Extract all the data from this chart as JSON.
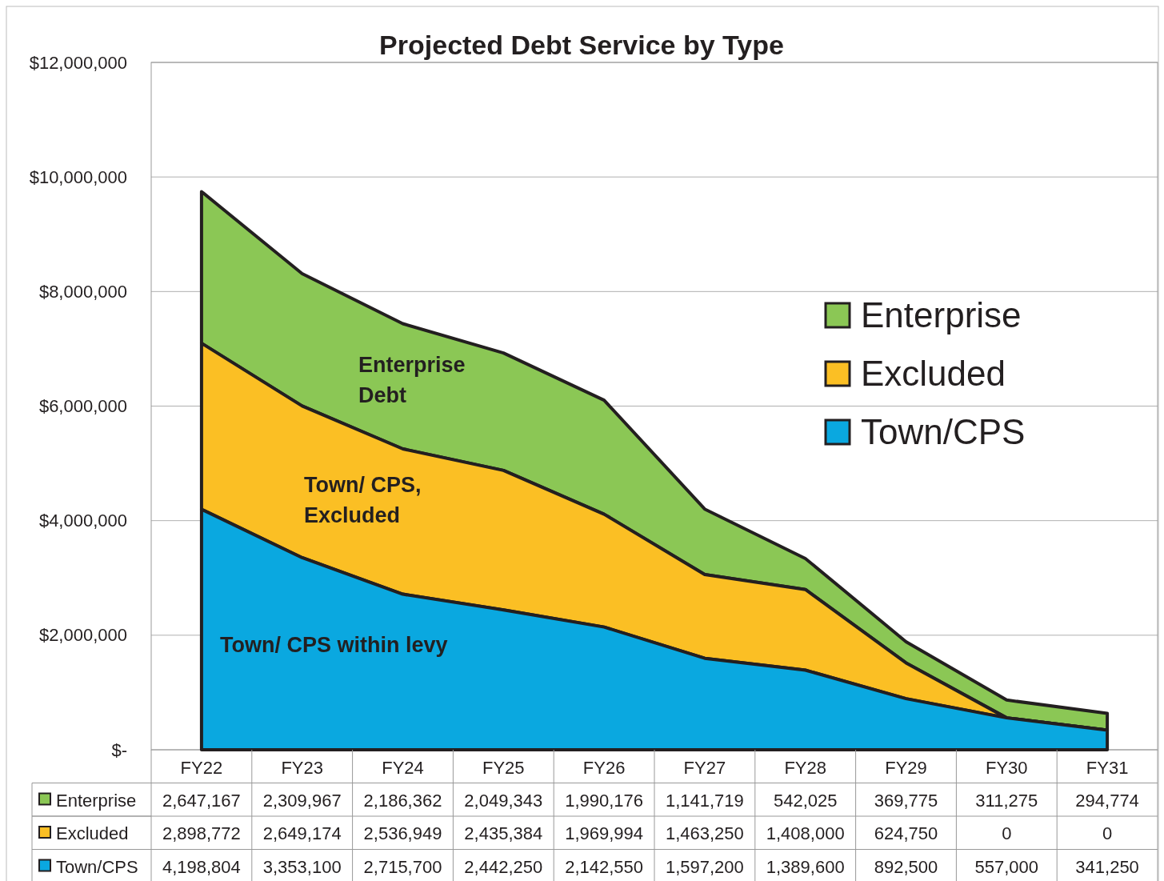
{
  "chart_data": {
    "type": "area",
    "title": "Projected Debt Service by Type",
    "stacked": true,
    "categories": [
      "FY22",
      "FY23",
      "FY24",
      "FY25",
      "FY26",
      "FY27",
      "FY28",
      "FY29",
      "FY30",
      "FY31"
    ],
    "series": [
      {
        "name": "Town/CPS",
        "color": "#0aa8e0",
        "values": [
          4198804,
          3353100,
          2715700,
          2442250,
          2142550,
          1597200,
          1389600,
          892500,
          557000,
          341250
        ],
        "value_labels": [
          "4,198,804",
          "3,353,100",
          "2,715,700",
          "2,442,250",
          "2,142,550",
          "1,597,200",
          "1,389,600",
          "892,500",
          "557,000",
          "341,250"
        ]
      },
      {
        "name": "Excluded",
        "color": "#fbbf24",
        "values": [
          2898772,
          2649174,
          2536949,
          2435384,
          1969994,
          1463250,
          1408000,
          624750,
          0,
          0
        ],
        "value_labels": [
          "2,898,772",
          "2,649,174",
          "2,536,949",
          "2,435,384",
          "1,969,994",
          "1,463,250",
          "1,408,000",
          "624,750",
          "0",
          "0"
        ]
      },
      {
        "name": "Enterprise",
        "color": "#8bc755",
        "values": [
          2647167,
          2309967,
          2186362,
          2049343,
          1990176,
          1141719,
          542025,
          369775,
          311275,
          294774
        ],
        "value_labels": [
          "2,647,167",
          "2,309,967",
          "2,186,362",
          "2,049,343",
          "1,990,176",
          "1,141,719",
          "542,025",
          "369,775",
          "311,275",
          "294,774"
        ]
      }
    ],
    "ylim": [
      0,
      12000000
    ],
    "yticks": [
      {
        "value": 0,
        "label": "$-"
      },
      {
        "value": 2000000,
        "label": "$2,000,000"
      },
      {
        "value": 4000000,
        "label": "$4,000,000"
      },
      {
        "value": 6000000,
        "label": "$6,000,000"
      },
      {
        "value": 8000000,
        "label": "$8,000,000"
      },
      {
        "value": 10000000,
        "label": "$10,000,000"
      },
      {
        "value": 12000000,
        "label": "$12,000,000"
      }
    ],
    "grid": "y",
    "legend": "right",
    "annotations": [
      "Enterprise\nDebt",
      "Town/ CPS,\nExcluded",
      "Town/ CPS within levy"
    ]
  }
}
